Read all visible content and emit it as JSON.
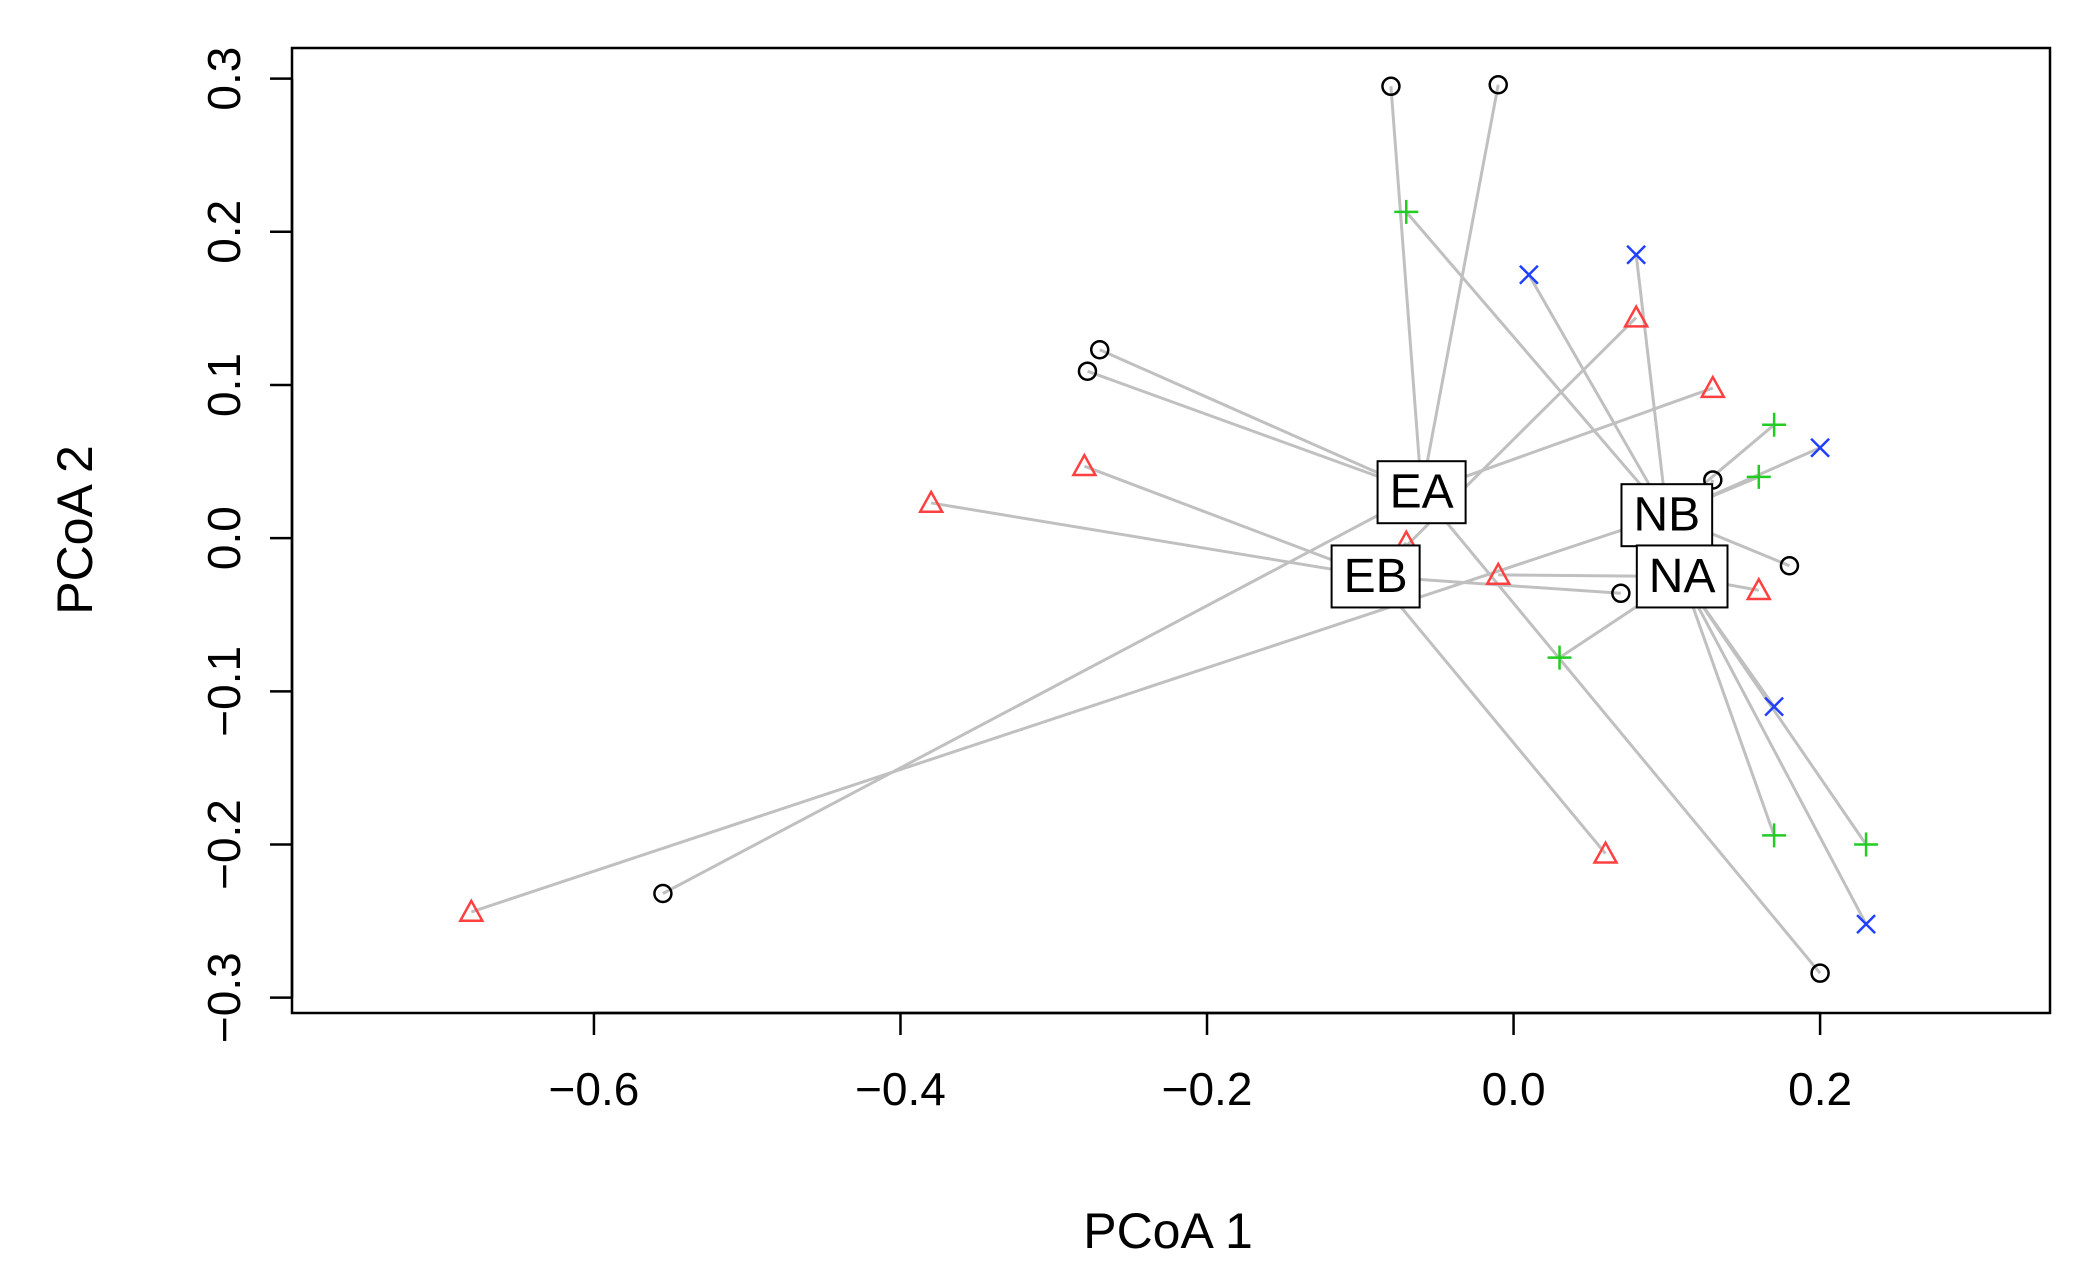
{
  "chart_data": {
    "type": "scatter",
    "title": "",
    "xlabel": "PCoA 1",
    "ylabel": "PCoA 2",
    "xlim": [
      -0.797,
      0.35
    ],
    "ylim": [
      -0.31,
      0.32
    ],
    "xticks": [
      -0.6,
      -0.4,
      -0.2,
      0.0,
      0.2
    ],
    "xtick_labels": [
      "−0.6",
      "−0.4",
      "−0.2",
      "0.0",
      "0.2"
    ],
    "yticks": [
      -0.3,
      -0.2,
      -0.1,
      0.0,
      0.1,
      0.2,
      0.3
    ],
    "ytick_labels": [
      "−0.3",
      "−0.2",
      "−0.1",
      "0.0",
      "0.1",
      "0.2",
      "0.3"
    ],
    "grid": false,
    "connector_color": "#c0c0c0",
    "centroids": [
      {
        "name": "EA",
        "x": -0.06,
        "y": 0.03
      },
      {
        "name": "EB",
        "x": -0.09,
        "y": -0.025
      },
      {
        "name": "NB",
        "x": 0.1,
        "y": 0.015
      },
      {
        "name": "NA",
        "x": 0.11,
        "y": -0.025
      }
    ],
    "series": [
      {
        "name": "circle",
        "symbol": "circle",
        "color": "#000000",
        "points": [
          {
            "x": -0.08,
            "y": 0.295,
            "group": "EA"
          },
          {
            "x": -0.01,
            "y": 0.296,
            "group": "EA"
          },
          {
            "x": -0.27,
            "y": 0.123,
            "group": "EA"
          },
          {
            "x": -0.278,
            "y": 0.109,
            "group": "EA"
          },
          {
            "x": -0.555,
            "y": -0.232,
            "group": "EA"
          },
          {
            "x": 0.13,
            "y": 0.038,
            "group": "NA"
          },
          {
            "x": 0.07,
            "y": -0.036,
            "group": "EB"
          },
          {
            "x": 0.18,
            "y": -0.018,
            "group": "NB"
          },
          {
            "x": 0.2,
            "y": -0.284,
            "group": "EA"
          }
        ]
      },
      {
        "name": "triangle",
        "symbol": "triangle",
        "color": "#ff4040",
        "points": [
          {
            "x": -0.68,
            "y": -0.244,
            "group": "NB"
          },
          {
            "x": -0.38,
            "y": 0.023,
            "group": "EB"
          },
          {
            "x": -0.28,
            "y": 0.047,
            "group": "EB"
          },
          {
            "x": -0.07,
            "y": -0.003,
            "group": "EB"
          },
          {
            "x": -0.01,
            "y": -0.024,
            "group": "NA"
          },
          {
            "x": 0.06,
            "y": -0.206,
            "group": "EB"
          },
          {
            "x": 0.08,
            "y": 0.144,
            "group": "EB"
          },
          {
            "x": 0.13,
            "y": 0.098,
            "group": "EA"
          },
          {
            "x": 0.16,
            "y": -0.034,
            "group": "NA"
          }
        ]
      },
      {
        "name": "plus",
        "symbol": "plus",
        "color": "#22cc22",
        "points": [
          {
            "x": -0.07,
            "y": 0.213,
            "group": "NB"
          },
          {
            "x": 0.03,
            "y": -0.078,
            "group": "NA"
          },
          {
            "x": 0.17,
            "y": 0.074,
            "group": "NB"
          },
          {
            "x": 0.16,
            "y": 0.04,
            "group": "NB"
          },
          {
            "x": 0.17,
            "y": -0.194,
            "group": "NA"
          },
          {
            "x": 0.23,
            "y": -0.2,
            "group": "NA"
          }
        ]
      },
      {
        "name": "cross",
        "symbol": "x",
        "color": "#2040ff",
        "points": [
          {
            "x": 0.01,
            "y": 0.172,
            "group": "NB"
          },
          {
            "x": 0.08,
            "y": 0.185,
            "group": "NB"
          },
          {
            "x": 0.2,
            "y": 0.059,
            "group": "NB"
          },
          {
            "x": 0.17,
            "y": -0.11,
            "group": "NA"
          },
          {
            "x": 0.23,
            "y": -0.252,
            "group": "NA"
          }
        ]
      }
    ]
  }
}
